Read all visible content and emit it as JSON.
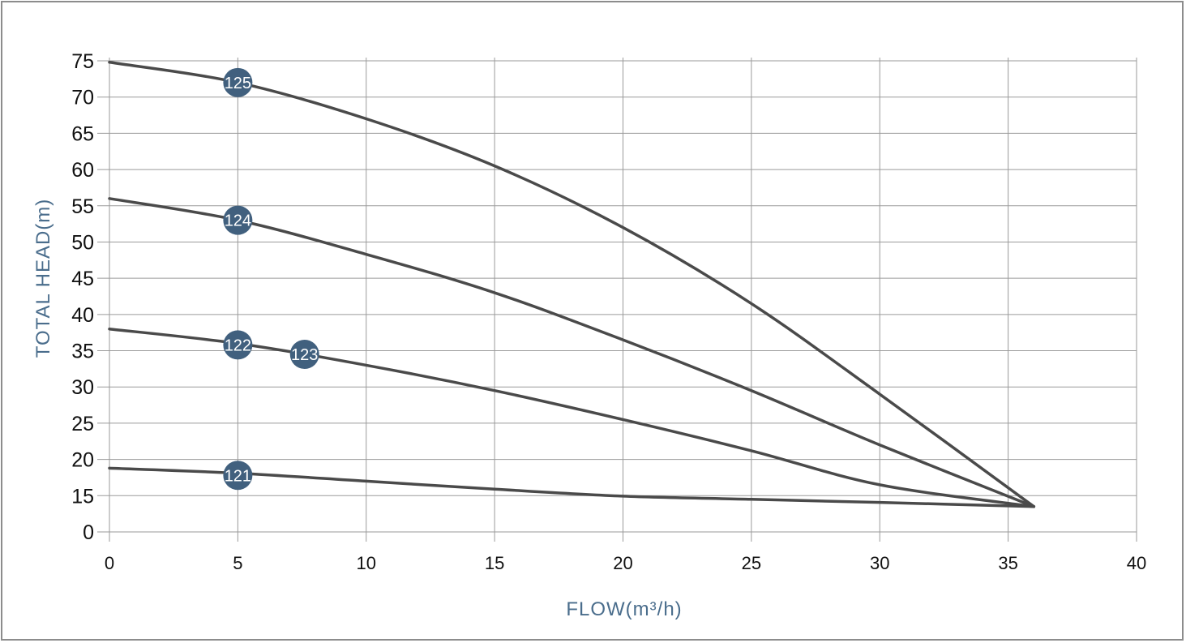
{
  "chart_data": {
    "type": "line",
    "xlabel": "FLOW(m³/h)",
    "ylabel": "TOTAL HEAD(m)",
    "xlim": [
      0,
      40
    ],
    "x_ticks": [
      "0",
      "5",
      "10",
      "15",
      "20",
      "25",
      "30",
      "35",
      "40"
    ],
    "y_ticks": [
      "0",
      "15",
      "20",
      "25",
      "30",
      "35",
      "40",
      "45",
      "50",
      "55",
      "60",
      "65",
      "70",
      "75"
    ],
    "grid": true,
    "colors": {
      "curve": "#4a4a4a",
      "badge": "#41607e",
      "grid": "#9a9a9a",
      "axis_title": "#4a6d8c"
    },
    "series": [
      {
        "name": "121",
        "x": [
          0,
          5,
          10,
          15,
          20,
          25,
          30,
          36
        ],
        "y": [
          18.8,
          18.1,
          17.0,
          15.9,
          14.8,
          13.5,
          12.2,
          10.5
        ]
      },
      {
        "name": "122",
        "x": [
          0,
          5,
          10,
          15,
          20,
          25,
          30,
          36
        ],
        "y": [
          38.0,
          36.0,
          33.0,
          29.5,
          25.5,
          21.2,
          16.5,
          10.5
        ]
      },
      {
        "name": "124",
        "x": [
          0,
          5,
          10,
          15,
          20,
          25,
          30,
          36
        ],
        "y": [
          56.0,
          53.0,
          48.3,
          43.0,
          36.5,
          29.5,
          22.0,
          10.5
        ]
      },
      {
        "name": "125",
        "x": [
          0,
          5,
          10,
          15,
          20,
          25,
          30,
          36
        ],
        "y": [
          74.8,
          72.0,
          67.0,
          60.5,
          52.0,
          41.5,
          29.0,
          10.5
        ]
      }
    ],
    "labels": [
      {
        "text": "125",
        "x": 5.0,
        "y": 72.0
      },
      {
        "text": "124",
        "x": 5.0,
        "y": 53.0
      },
      {
        "text": "122",
        "x": 5.0,
        "y": 35.8
      },
      {
        "text": "123",
        "x": 7.6,
        "y": 34.5
      },
      {
        "text": "121",
        "x": 5.0,
        "y": 17.8
      }
    ]
  }
}
